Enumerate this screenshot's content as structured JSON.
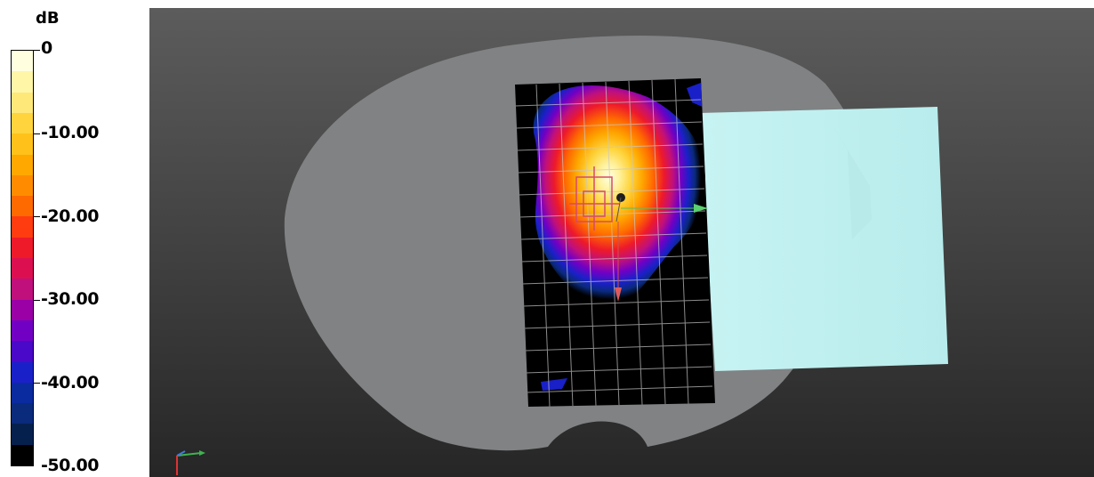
{
  "legend": {
    "unit": "dB",
    "ticks": [
      "0",
      "-10.00",
      "-20.00",
      "-30.00",
      "-40.00",
      "-50.00"
    ],
    "bands": [
      "#ffffe0",
      "#fff6a8",
      "#ffe87a",
      "#ffd43c",
      "#ffc11a",
      "#ffa800",
      "#ff8c00",
      "#ff6a00",
      "#ff3c10",
      "#ee1a2a",
      "#dc1050",
      "#c0107c",
      "#9a00a6",
      "#7200c4",
      "#4a08c8",
      "#1a20c8",
      "#0a2aa0",
      "#0a2a7c",
      "#06204e",
      "#000000"
    ]
  },
  "viewport": {
    "colors": {
      "background_top": "#5c5c5c",
      "background_bottom": "#262626",
      "body_shape": "#808284",
      "reflector_plate": "#c2f0f0",
      "heatmap_base": "#000000",
      "grid": "#c8c8c8"
    },
    "axis_triad_icon": "xyz-axis-icon"
  }
}
